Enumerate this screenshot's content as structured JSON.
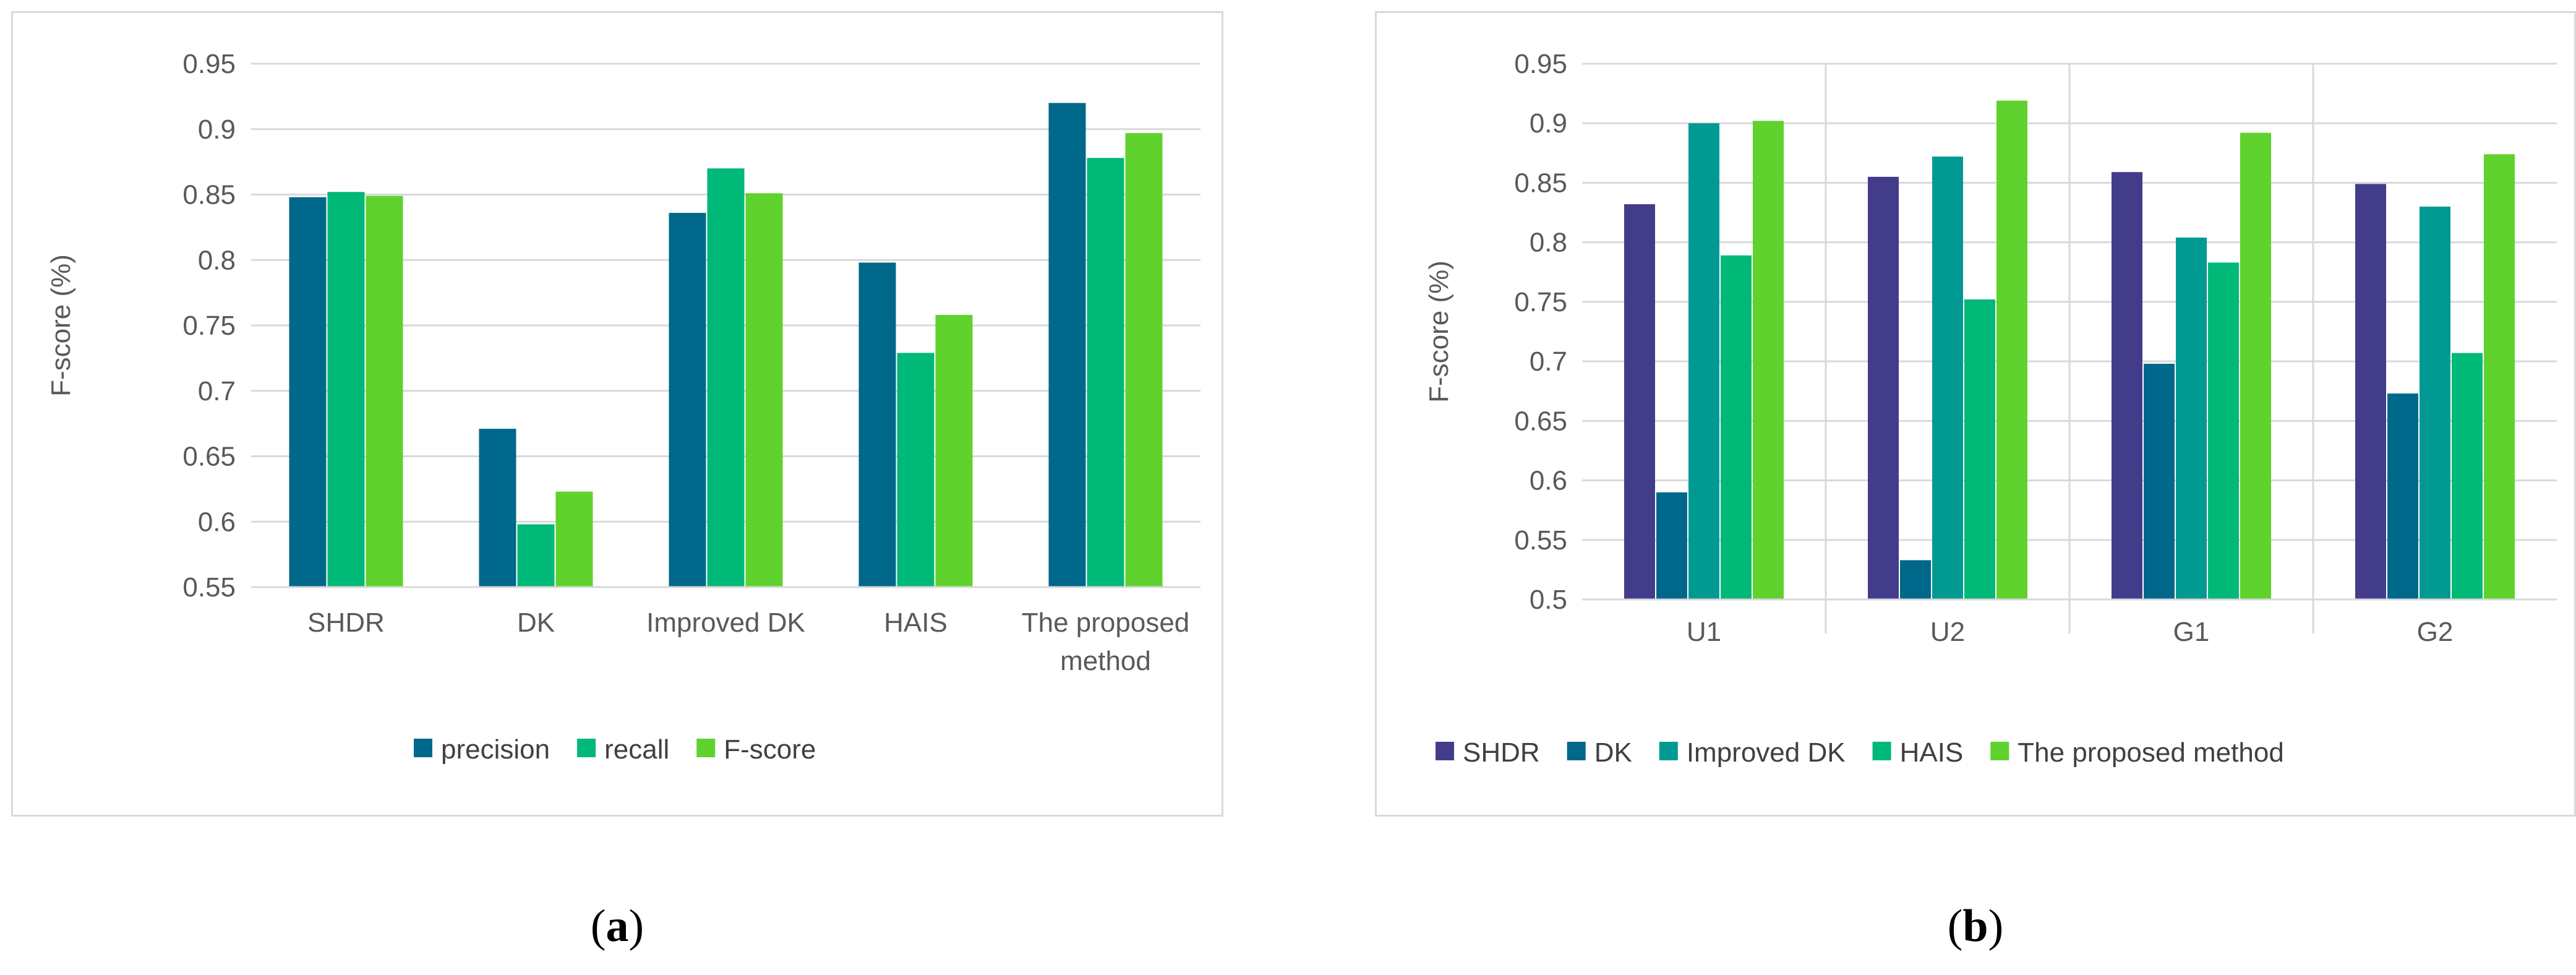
{
  "captions": {
    "a": "a",
    "b": "b"
  },
  "chart_data": [
    {
      "type": "bar",
      "panel": "a",
      "title": "",
      "xlabel": "",
      "ylabel": "F-score (%)",
      "ylim": [
        0.55,
        0.95
      ],
      "ytick_step": 0.05,
      "yticks": [
        "0.55",
        "0.6",
        "0.65",
        "0.7",
        "0.75",
        "0.8",
        "0.85",
        "0.9",
        "0.95"
      ],
      "grid": true,
      "legend_position": "bottom",
      "categories": [
        [
          "SHDR"
        ],
        [
          "DK"
        ],
        [
          "Improved DK"
        ],
        [
          "HAIS"
        ],
        [
          "The proposed",
          "method"
        ]
      ],
      "series": [
        {
          "name": "precision",
          "color": "#00688b",
          "values": [
            0.848,
            0.671,
            0.836,
            0.798,
            0.92
          ]
        },
        {
          "name": "recall",
          "color": "#00b877",
          "values": [
            0.852,
            0.598,
            0.87,
            0.729,
            0.878
          ]
        },
        {
          "name": "F-score",
          "color": "#5fd22d",
          "values": [
            0.849,
            0.623,
            0.851,
            0.758,
            0.897
          ]
        }
      ]
    },
    {
      "type": "bar",
      "panel": "b",
      "title": "",
      "xlabel": "",
      "ylabel": "F-score (%)",
      "ylim": [
        0.5,
        0.95
      ],
      "ytick_step": 0.05,
      "yticks": [
        "0.5",
        "0.55",
        "0.6",
        "0.65",
        "0.7",
        "0.75",
        "0.8",
        "0.85",
        "0.9",
        "0.95"
      ],
      "grid": true,
      "legend_position": "bottom",
      "categories": [
        [
          "U1"
        ],
        [
          "U2"
        ],
        [
          "G1"
        ],
        [
          "G2"
        ]
      ],
      "series": [
        {
          "name": "SHDR",
          "color": "#433c8b",
          "values": [
            0.832,
            0.855,
            0.859,
            0.849
          ]
        },
        {
          "name": "DK",
          "color": "#00688b",
          "values": [
            0.59,
            0.533,
            0.698,
            0.673
          ]
        },
        {
          "name": "Improved DK",
          "color": "#009a93",
          "values": [
            0.9,
            0.872,
            0.804,
            0.83
          ]
        },
        {
          "name": "HAIS",
          "color": "#00b877",
          "values": [
            0.789,
            0.752,
            0.783,
            0.707
          ]
        },
        {
          "name": "The proposed method",
          "color": "#5fd22d",
          "values": [
            0.902,
            0.919,
            0.892,
            0.874
          ]
        }
      ]
    }
  ]
}
